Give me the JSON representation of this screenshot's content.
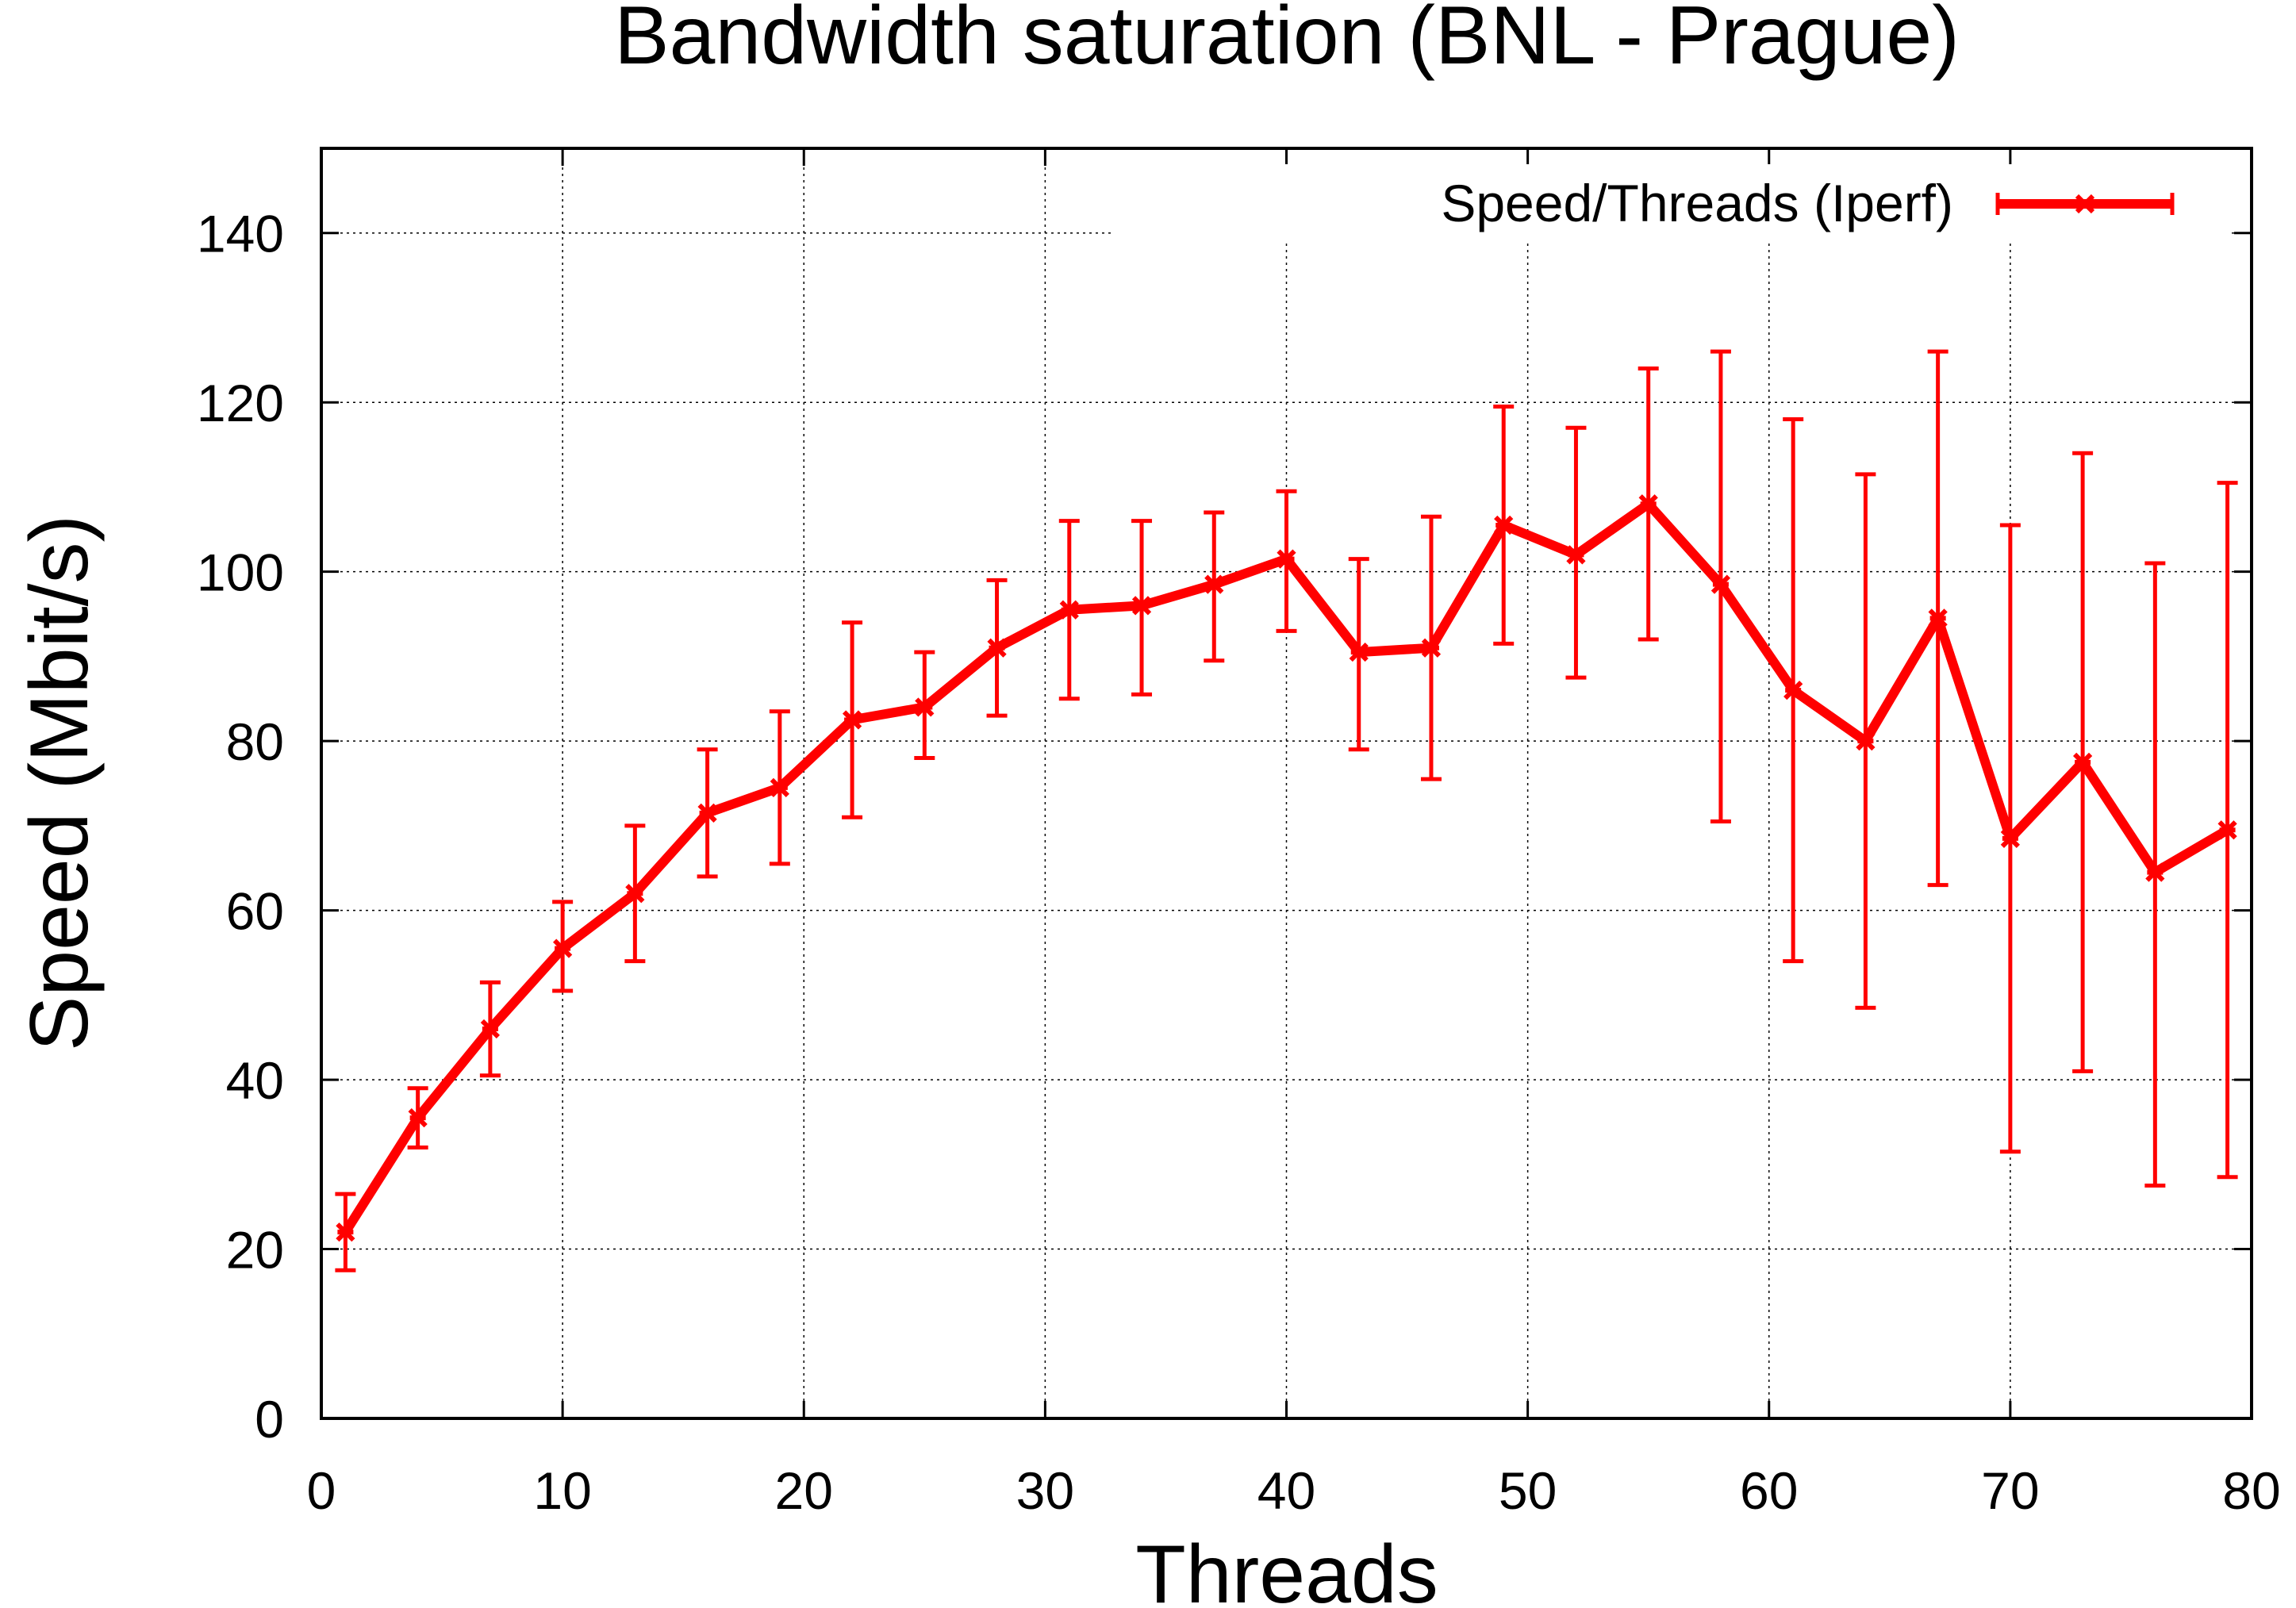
{
  "chart_data": {
    "type": "line",
    "title": "Bandwidth saturation (BNL - Prague)",
    "xlabel": "Threads",
    "ylabel": "Speed (Mbit/s)",
    "xlim": [
      0,
      80
    ],
    "ylim": [
      0,
      150
    ],
    "xticks": [
      "0",
      "10",
      "20",
      "30",
      "40",
      "50",
      "60",
      "70",
      "80"
    ],
    "yticks": [
      "0",
      "20",
      "40",
      "60",
      "80",
      "100",
      "120",
      "140"
    ],
    "grid": true,
    "legend_position": "top-right",
    "series": [
      {
        "name": "Speed/Threads (Iperf)",
        "color": "#ff0000",
        "error_bars": true,
        "points": [
          {
            "x": 1,
            "y": 22,
            "low": 17.5,
            "high": 26.5
          },
          {
            "x": 4,
            "y": 35.5,
            "low": 32,
            "high": 39
          },
          {
            "x": 7,
            "y": 46,
            "low": 40.5,
            "high": 51.5
          },
          {
            "x": 10,
            "y": 55.5,
            "low": 50.5,
            "high": 61
          },
          {
            "x": 13,
            "y": 62,
            "low": 54,
            "high": 70
          },
          {
            "x": 16,
            "y": 71.5,
            "low": 64,
            "high": 79
          },
          {
            "x": 19,
            "y": 74.5,
            "low": 65.5,
            "high": 83.5
          },
          {
            "x": 22,
            "y": 82.5,
            "low": 71,
            "high": 94
          },
          {
            "x": 25,
            "y": 84,
            "low": 78,
            "high": 90.5
          },
          {
            "x": 28,
            "y": 91,
            "low": 83,
            "high": 99
          },
          {
            "x": 31,
            "y": 95.5,
            "low": 85,
            "high": 106
          },
          {
            "x": 34,
            "y": 96,
            "low": 85.5,
            "high": 106
          },
          {
            "x": 37,
            "y": 98.5,
            "low": 89.5,
            "high": 107
          },
          {
            "x": 40,
            "y": 101.5,
            "low": 93,
            "high": 109.5
          },
          {
            "x": 43,
            "y": 90.5,
            "low": 79,
            "high": 101.5
          },
          {
            "x": 46,
            "y": 91,
            "low": 75.5,
            "high": 106.5
          },
          {
            "x": 49,
            "y": 105.5,
            "low": 91.5,
            "high": 119.5
          },
          {
            "x": 52,
            "y": 102,
            "low": 87.5,
            "high": 117
          },
          {
            "x": 55,
            "y": 108,
            "low": 92,
            "high": 124
          },
          {
            "x": 58,
            "y": 98.5,
            "low": 70.5,
            "high": 126
          },
          {
            "x": 61,
            "y": 86,
            "low": 54,
            "high": 118
          },
          {
            "x": 64,
            "y": 80,
            "low": 48.5,
            "high": 111.5
          },
          {
            "x": 67,
            "y": 94.5,
            "low": 63,
            "high": 126
          },
          {
            "x": 70,
            "y": 68.5,
            "low": 31.5,
            "high": 105.5
          },
          {
            "x": 73,
            "y": 77.5,
            "low": 41,
            "high": 114
          },
          {
            "x": 76,
            "y": 64.5,
            "low": 27.5,
            "high": 101
          },
          {
            "x": 79,
            "y": 69.5,
            "low": 28.5,
            "high": 110.5
          }
        ]
      }
    ]
  }
}
